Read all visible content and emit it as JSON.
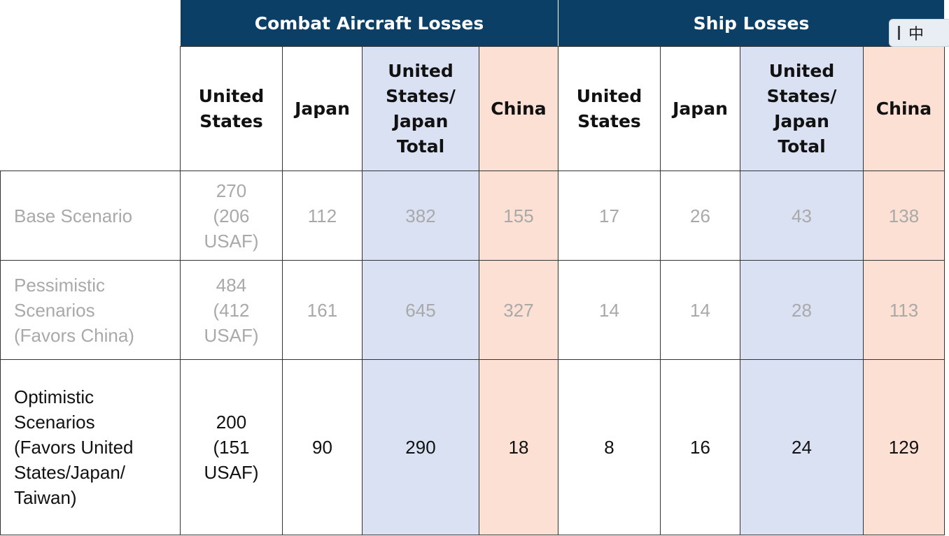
{
  "table": {
    "groups": [
      "Combat Aircraft Losses",
      "Ship Losses"
    ],
    "columns": [
      "United States",
      "Japan",
      "United States/ Japan Total",
      "China",
      "United States",
      "Japan",
      "United States/ Japan Total",
      "China"
    ],
    "rows": [
      {
        "label": "Base Scenario",
        "cells": [
          "270 (206 USAF)",
          "112",
          "382",
          "155",
          "17",
          "26",
          "43",
          "138"
        ]
      },
      {
        "label": "Pessimistic Scenarios (Favors China)",
        "cells": [
          "484 (412 USAF)",
          "161",
          "645",
          "327",
          "14",
          "14",
          "28",
          "113"
        ]
      },
      {
        "label": "Optimistic Scenarios (Favors United States/Japan/ Taiwan)",
        "cells": [
          "200 (151 USAF)",
          "90",
          "290",
          "18",
          "8",
          "16",
          "24",
          "129"
        ]
      }
    ]
  },
  "ime": {
    "label": "中"
  }
}
